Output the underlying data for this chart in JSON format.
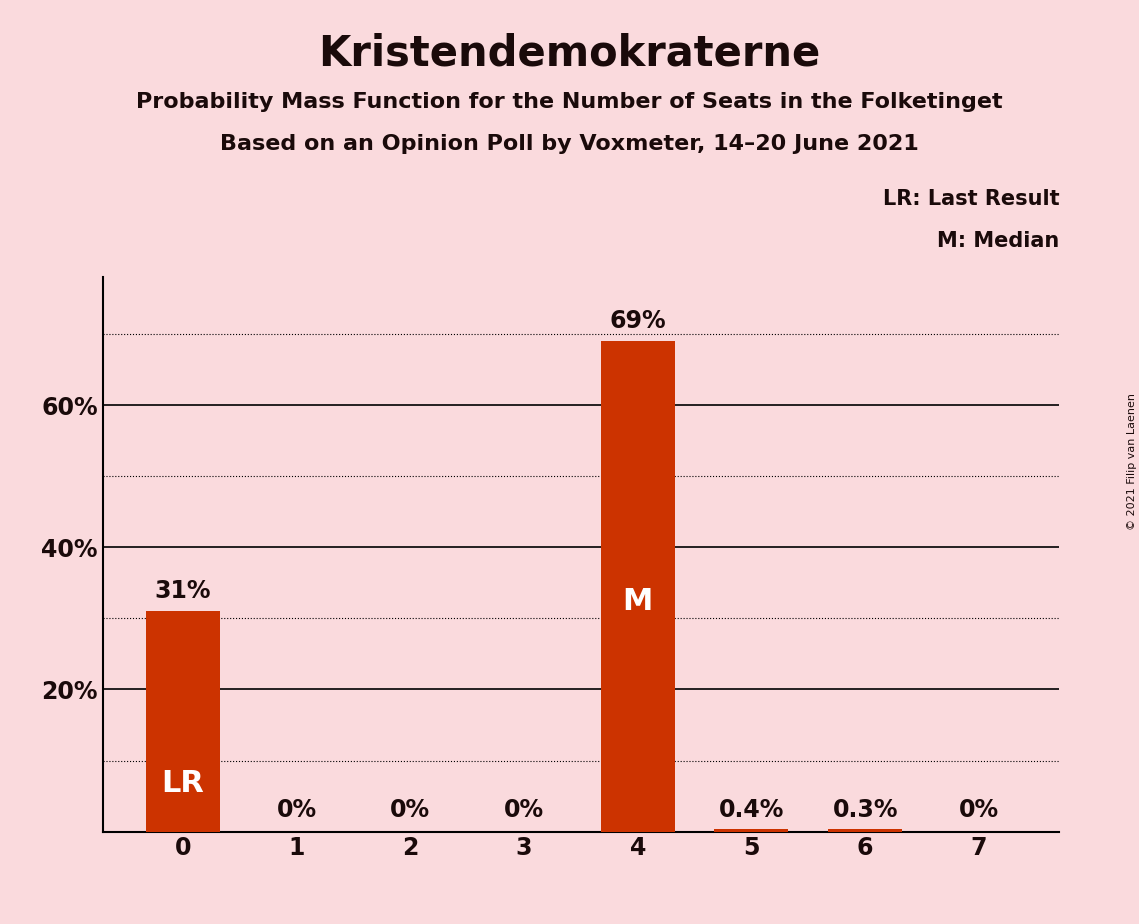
{
  "title": "Kristendemokraterne",
  "subtitle1": "Probability Mass Function for the Number of Seats in the Folketinget",
  "subtitle2": "Based on an Opinion Poll by Voxmeter, 14–20 June 2021",
  "copyright": "© 2021 Filip van Laenen",
  "categories": [
    0,
    1,
    2,
    3,
    4,
    5,
    6,
    7
  ],
  "values": [
    0.31,
    0.0,
    0.0,
    0.0,
    0.69,
    0.004,
    0.003,
    0.0
  ],
  "labels": [
    "31%",
    "0%",
    "0%",
    "0%",
    "69%",
    "0.4%",
    "0.3%",
    "0%"
  ],
  "bar_color": "#CC3300",
  "background_color": "#FADADD",
  "text_color": "#1a0a0a",
  "bar_label_color_inside": "#ffffff",
  "lr_bar_index": 0,
  "median_bar_index": 4,
  "lr_label": "LR",
  "median_label": "M",
  "legend_text1": "LR: Last Result",
  "legend_text2": "M: Median",
  "ylim": [
    0,
    0.78
  ],
  "major_yticks": [
    0.2,
    0.4,
    0.6
  ],
  "minor_yticks": [
    0.1,
    0.3,
    0.5,
    0.7
  ],
  "title_fontsize": 30,
  "subtitle_fontsize": 16,
  "label_fontsize": 17,
  "tick_fontsize": 17,
  "legend_fontsize": 15,
  "inside_label_fontsize": 22,
  "bar_width": 0.65
}
